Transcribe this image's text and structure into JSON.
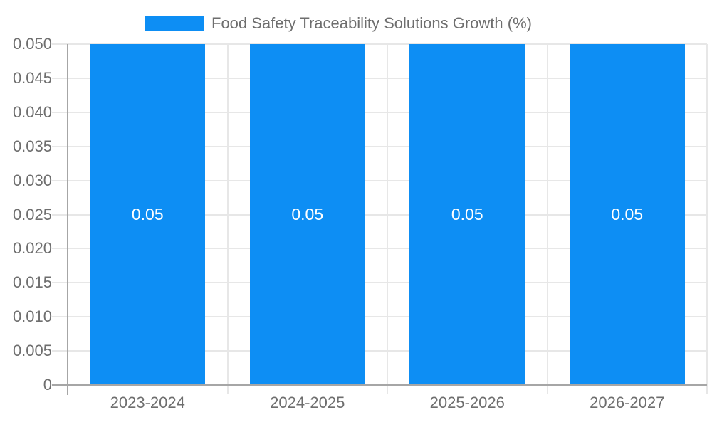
{
  "chart_data": {
    "type": "bar",
    "legend": {
      "label": "Food Safety Traceability Solutions Growth (%)",
      "position": "top"
    },
    "categories": [
      "2023-2024",
      "2024-2025",
      "2025-2026",
      "2026-2027"
    ],
    "series": [
      {
        "name": "Food Safety Traceability Solutions Growth (%)",
        "values": [
          0.05,
          0.05,
          0.05,
          0.05
        ]
      }
    ],
    "bar_labels": [
      "0.05",
      "0.05",
      "0.05",
      "0.05"
    ],
    "ylim": [
      0,
      0.05
    ],
    "ytick_step": 0.005,
    "ytick_labels": [
      "0",
      "0.005",
      "0.010",
      "0.015",
      "0.020",
      "0.025",
      "0.030",
      "0.035",
      "0.040",
      "0.045",
      "0.050"
    ],
    "grid": true,
    "colors": {
      "bar": "#0d8ef4",
      "grid": "#e7e7e7",
      "axis": "#a6a6a6",
      "tick_text": "#6e6e6e",
      "bar_label_text": "#ffffff",
      "legend_text": "#6e6e6e",
      "background": "#ffffff"
    }
  }
}
